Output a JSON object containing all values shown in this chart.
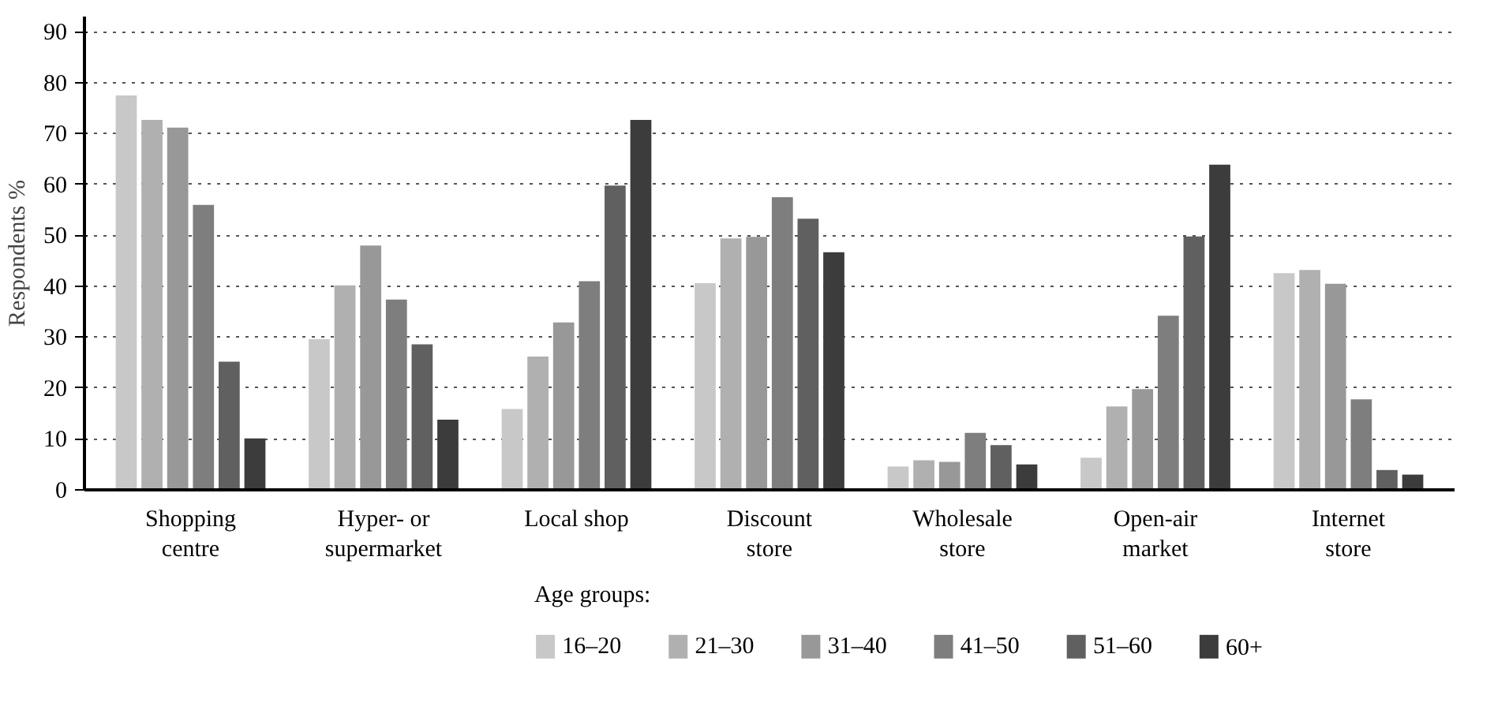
{
  "chart_data": {
    "type": "bar",
    "ylabel": "Respondents %",
    "legend_title": "Age groups:",
    "categories": [
      "Shopping\ncentre",
      "Hyper- or\nsupermarket",
      "Local shop",
      "Discount\nstore",
      "Wholesale\nstore",
      "Open-air\nmarket",
      "Internet\nstore"
    ],
    "series": [
      {
        "name": "16–20",
        "color": "#c8c8c8",
        "values": [
          77.5,
          29.6,
          15.9,
          40.6,
          4.6,
          6.3,
          42.6
        ]
      },
      {
        "name": "21–30",
        "color": "#b0b0b0",
        "values": [
          72.7,
          40.2,
          26.2,
          49.4,
          5.8,
          16.4,
          43.2
        ]
      },
      {
        "name": "31–40",
        "color": "#989898",
        "values": [
          71.2,
          48.0,
          32.9,
          49.7,
          5.5,
          19.8,
          40.5
        ]
      },
      {
        "name": "41–50",
        "color": "#7e7e7e",
        "values": [
          56.0,
          37.4,
          41.0,
          57.5,
          11.2,
          34.2,
          17.8
        ]
      },
      {
        "name": "51–60",
        "color": "#606060",
        "values": [
          25.2,
          28.6,
          59.8,
          53.3,
          8.8,
          49.8,
          3.9
        ]
      },
      {
        "name": "60+",
        "color": "#3c3c3c",
        "values": [
          10.1,
          13.8,
          72.7,
          46.7,
          5.0,
          63.9,
          3.0
        ]
      }
    ],
    "ylim": [
      0,
      93
    ],
    "yticks": [
      0,
      10,
      20,
      30,
      40,
      50,
      60,
      70,
      80,
      90
    ],
    "grid": "y",
    "legend": "bottom"
  }
}
